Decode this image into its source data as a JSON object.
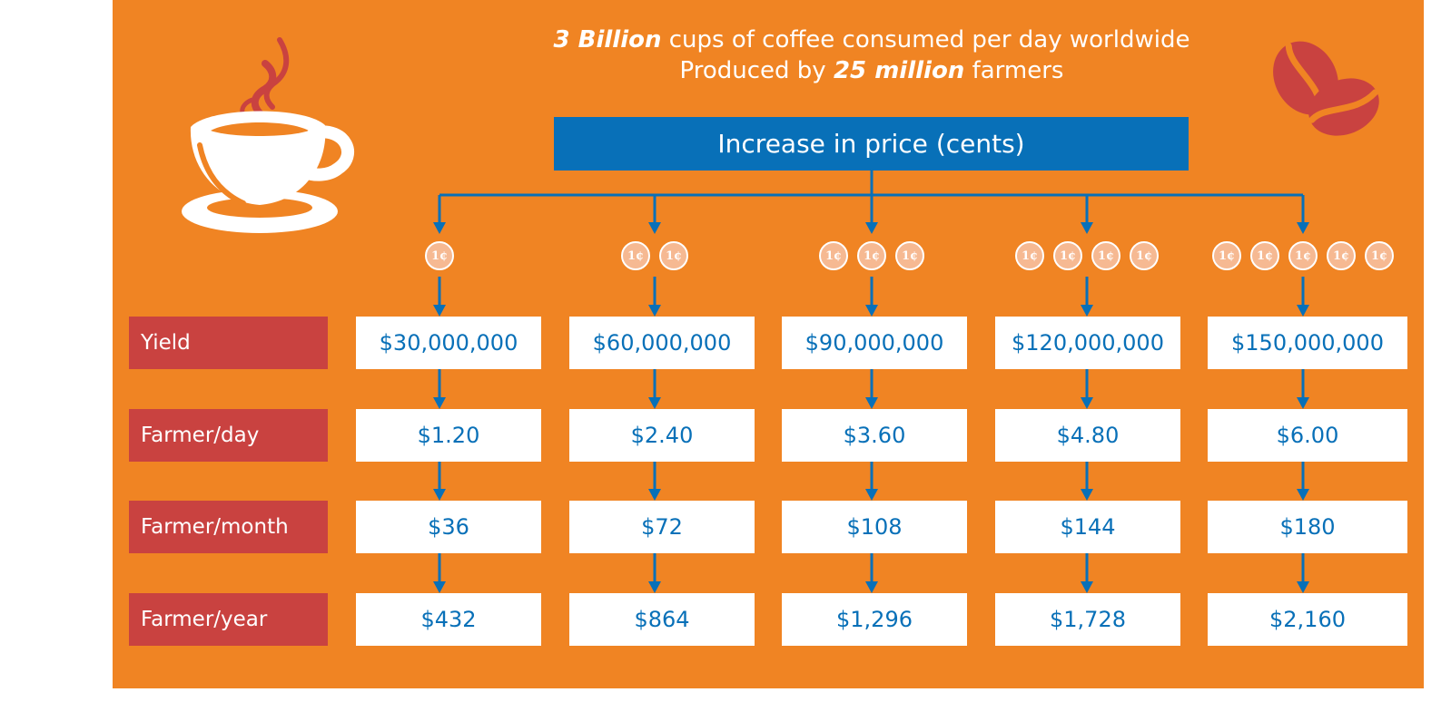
{
  "colors": {
    "background_orange": "#f08423",
    "header_blue": "#0870b8",
    "row_label_red": "#c94240",
    "coin_fill": "#f6b992",
    "cell_text": "#0870b8",
    "white": "#ffffff"
  },
  "headline": {
    "line1_bold": "3 Billion",
    "line1_rest": "cups of coffee consumed per day worldwide",
    "line2_start": "Produced by",
    "line2_bold": "25 million",
    "line2_end": "farmers"
  },
  "price_header": "Increase in price (cents)",
  "coin_label": "1¢",
  "icons": {
    "cup": "coffee-cup-icon",
    "beans": "coffee-beans-icon",
    "coin": "one-cent-coin-icon"
  },
  "columns": [
    {
      "cents": 1,
      "yield": "$30,000,000",
      "day": "$1.20",
      "month": "$36",
      "year": "$432"
    },
    {
      "cents": 2,
      "yield": "$60,000,000",
      "day": "$2.40",
      "month": "$72",
      "year": "$864"
    },
    {
      "cents": 3,
      "yield": "$90,000,000",
      "day": "$3.60",
      "month": "$108",
      "year": "$1,296"
    },
    {
      "cents": 4,
      "yield": "$120,000,000",
      "day": "$4.80",
      "month": "$144",
      "year": "$1,728"
    },
    {
      "cents": 5,
      "yield": "$150,000,000",
      "day": "$6.00",
      "month": "$180",
      "year": "$2,160"
    }
  ],
  "rows": [
    {
      "key": "yield",
      "label": "Yield"
    },
    {
      "key": "day",
      "label": "Farmer/day"
    },
    {
      "key": "month",
      "label": "Farmer/month"
    },
    {
      "key": "year",
      "label": "Farmer/year"
    }
  ]
}
